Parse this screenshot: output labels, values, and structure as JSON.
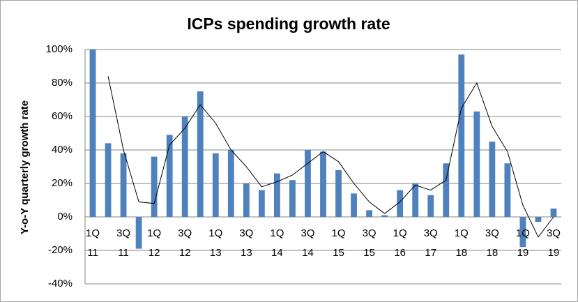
{
  "chart_data": {
    "type": "bar",
    "title": "ICPs spending growth rate",
    "ylabel": "Y-o-Y quarterly growth rate",
    "categories": [
      "1Q 11",
      null,
      "3Q 11",
      null,
      "1Q 12",
      null,
      "3Q 12",
      null,
      "1Q 13",
      null,
      "3Q 13",
      null,
      "1Q 14",
      null,
      "3Q 14",
      null,
      "1Q 15",
      null,
      "3Q 15",
      null,
      "1Q 16",
      null,
      "3Q 17",
      null,
      "1Q 18",
      null,
      "3Q 18",
      null,
      "1Q 19",
      null,
      "3Q 19"
    ],
    "series": [
      {
        "type": "bar",
        "color": "#4f81bd",
        "values": [
          100,
          44,
          38,
          -19,
          36,
          49,
          60,
          75,
          38,
          40,
          20,
          16,
          26,
          22,
          40,
          39,
          28,
          14,
          4,
          1,
          16,
          20,
          13,
          32,
          97,
          63,
          45,
          32,
          -18,
          -3,
          5
        ]
      },
      {
        "type": "line",
        "color": "#000000",
        "values": [
          null,
          84,
          40,
          9,
          8,
          43,
          53,
          67,
          56,
          40,
          30,
          18,
          21,
          25,
          32,
          39,
          33,
          20,
          9,
          2,
          9,
          19,
          16,
          22,
          65,
          80,
          54,
          39,
          7,
          -12,
          0
        ]
      }
    ],
    "ylim": [
      -40,
      100
    ],
    "yticks": [
      {
        "value": -40,
        "label": "-40%"
      },
      {
        "value": -20,
        "label": "-20%"
      },
      {
        "value": 0,
        "label": "0%"
      },
      {
        "value": 20,
        "label": "20%"
      },
      {
        "value": 40,
        "label": "40%"
      },
      {
        "value": 60,
        "label": "60%"
      },
      {
        "value": 80,
        "label": "80%"
      },
      {
        "value": 100,
        "label": "100%"
      }
    ],
    "grid": true
  }
}
